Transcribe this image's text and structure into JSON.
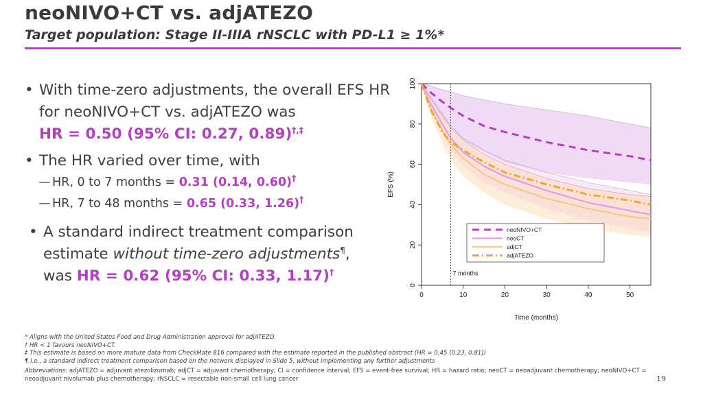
{
  "header": {
    "title": "neoNIVO+CT vs. adjATEZO",
    "subtitle": "Target population: Stage II-IIIA rNSCLC with PD-L1 ≥ 1%*"
  },
  "bullets": {
    "b1_line": "With time-zero adjustments, the overall EFS HR for neoNIVO+CT vs. adjATEZO was",
    "b1_hr": "HR = 0.50 (95% CI: 0.27, 0.89)",
    "b1_sup": "†,‡",
    "b2_line": "The HR varied over time, with",
    "sub1_label": "HR, 0 to 7 months = ",
    "sub1_value": "0.31 (0.14, 0.60)",
    "sub1_sup": "†",
    "sub2_label": "HR, 7 to 48 months = ",
    "sub2_value": "0.65 (0.33, 1.26)",
    "sub2_sup": "†",
    "b3_line1": "A standard indirect treatment comparison estimate ",
    "b3_italic": "without time-zero adjustments",
    "b3_sup1": "¶",
    "b3_comma": ",",
    "b3_was": "was ",
    "b3_hr": "HR = 0.62 (95% CI: 0.33, 1.17)",
    "b3_sup2": "†"
  },
  "chart_data": {
    "type": "line",
    "ylabel": "EFS (%)",
    "xlabel": "Time (months)",
    "xlim": [
      0,
      55
    ],
    "ylim": [
      0,
      100
    ],
    "x_ticks": [
      0,
      10,
      20,
      30,
      40,
      50
    ],
    "y_ticks": [
      0,
      20,
      40,
      60,
      80,
      100
    ],
    "vline": {
      "x": 7,
      "label": "7 months"
    },
    "legend_position": "bottom-right",
    "series": [
      {
        "name": "neoNIVO+CT",
        "color": "#b43fc3",
        "style": "dashed",
        "x": [
          0,
          2,
          5,
          7,
          10,
          15,
          20,
          30,
          40,
          50,
          55
        ],
        "y": [
          100,
          96,
          91,
          88,
          84,
          79,
          76,
          71,
          67,
          64,
          62
        ],
        "ci_lower": [
          100,
          93,
          83,
          78,
          72,
          66,
          61,
          56,
          53,
          51,
          50
        ],
        "ci_upper": [
          100,
          99,
          97,
          96,
          94,
          92,
          90,
          87,
          84,
          80,
          78
        ]
      },
      {
        "name": "neoCT",
        "color": "#e39ce8",
        "style": "solid",
        "x": [
          0,
          2,
          5,
          7,
          10,
          15,
          20,
          30,
          40,
          50,
          55
        ],
        "y": [
          100,
          91,
          80,
          73,
          66,
          59,
          54,
          47,
          41,
          37,
          35
        ],
        "ci_lower": [
          100,
          88,
          75,
          67,
          59,
          51,
          46,
          38,
          32,
          28,
          26
        ],
        "ci_upper": [
          100,
          94,
          85,
          79,
          73,
          67,
          62,
          56,
          51,
          47,
          45
        ]
      },
      {
        "name": "adjCT",
        "color": "#f7c98a",
        "style": "solid",
        "x": [
          0,
          2,
          5,
          7,
          10,
          15,
          20,
          30,
          40,
          50,
          55
        ],
        "y": [
          100,
          89,
          77,
          70,
          63,
          55,
          50,
          43,
          38,
          34,
          33
        ],
        "ci_lower": [
          100,
          85,
          70,
          62,
          54,
          46,
          40,
          33,
          28,
          25,
          24
        ],
        "ci_upper": [
          100,
          93,
          84,
          78,
          72,
          65,
          60,
          53,
          48,
          45,
          44
        ]
      },
      {
        "name": "adjATEZO",
        "color": "#f0a830",
        "style": "dashdot",
        "x": [
          0,
          2,
          5,
          7,
          10,
          15,
          20,
          30,
          40,
          50,
          55
        ],
        "y": [
          100,
          88,
          76,
          71,
          67,
          61,
          56,
          50,
          45,
          42,
          40
        ]
      }
    ]
  },
  "footnotes": {
    "f1": "* Aligns with the United States Food and Drug Administration approval for adjATEZO.",
    "f2": "† HR < 1 favours neoNIVO+CT.",
    "f3": "‡ This estimate is based on more mature data from CheckMate 816 compared with the estimate reported in the published abstract (HR = 0.45 [0.23, 0.81])",
    "f4": "¶ I.e., a standard indirect treatment comparison based on the network displayed in Slide 5, without implementing any further adjustments",
    "abbr_label": "Abbreviations",
    "abbr_text": ": adjATEZO = adjuvant atezolizumab; adjCT = adjuvant chemotherapy; CI = confidence interval; EFS = event-free survival; HR = hazard ratio; neoCT = neoadjuvant chemotherapy; neoNIVO+CT = neoadjuvant nivolumab plus chemotherapy; rNSCLC = resectable non-small cell lung cancer"
  },
  "page": {
    "number": "19"
  }
}
